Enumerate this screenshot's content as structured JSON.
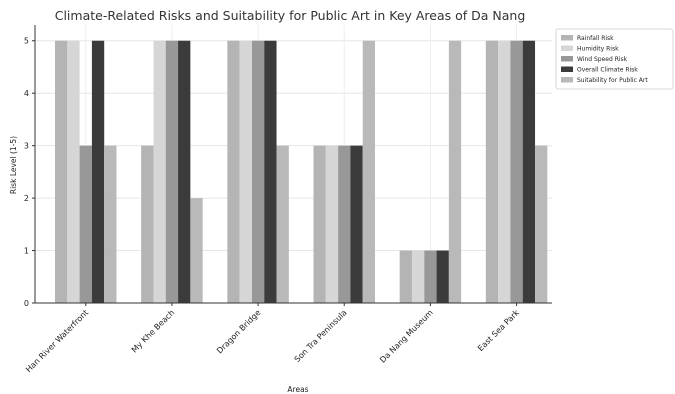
{
  "chart_data": {
    "type": "bar",
    "title": "Climate-Related Risks and Suitability for Public Art in Key Areas of Da Nang",
    "xlabel": "Areas",
    "ylabel": "Risk Level (1-5)",
    "ylim": [
      0,
      5.3
    ],
    "yticks": [
      0,
      1,
      2,
      3,
      4,
      5
    ],
    "grid": true,
    "legend_position": "top-right",
    "categories": [
      "Han River Waterfront",
      "My Khe Beach",
      "Dragon Bridge",
      "Son Tra Peninsula",
      "Da Nang Museum",
      "East Sea Park"
    ],
    "series": [
      {
        "name": "Rainfall Risk",
        "color": "#b4b4b4",
        "values": [
          5,
          3,
          5,
          3,
          1,
          5
        ]
      },
      {
        "name": "Humidity Risk",
        "color": "#d6d6d6",
        "values": [
          5,
          5,
          5,
          3,
          1,
          5
        ]
      },
      {
        "name": "Wind Speed Risk",
        "color": "#989898",
        "values": [
          3,
          5,
          5,
          3,
          1,
          5
        ]
      },
      {
        "name": "Overall Climate Risk",
        "color": "#3b3b3b",
        "values": [
          5,
          5,
          5,
          3,
          1,
          5
        ]
      },
      {
        "name": "Suitability for Public Art",
        "color": "#b9b9b9",
        "values": [
          3,
          2,
          3,
          5,
          5,
          3
        ]
      }
    ]
  }
}
